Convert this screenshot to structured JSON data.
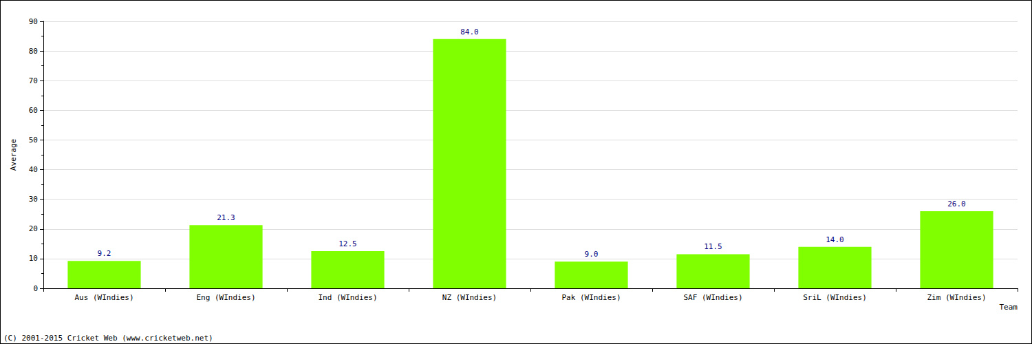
{
  "chart_data": {
    "type": "bar",
    "categories": [
      "Aus (WIndies)",
      "Eng (WIndies)",
      "Ind (WIndies)",
      "NZ (WIndies)",
      "Pak (WIndies)",
      "SAF (WIndies)",
      "SriL (WIndies)",
      "Zim (WIndies)"
    ],
    "values": [
      9.2,
      21.3,
      12.5,
      84.0,
      9.0,
      11.5,
      14.0,
      26.0
    ],
    "value_labels": [
      "9.2",
      "21.3",
      "12.5",
      "84.0",
      "9.0",
      "11.5",
      "14.0",
      "26.0"
    ],
    "color": "#80ff00",
    "x_label": "Team",
    "y_label": "Average",
    "ylim": [
      0,
      90
    ],
    "yticks": [
      0,
      10,
      20,
      30,
      40,
      50,
      60,
      70,
      80,
      90
    ],
    "grid": true,
    "data_labels": true,
    "annotations": [
      "(C) 2001-2015 Cricket Web (www.cricketweb.net)"
    ]
  }
}
